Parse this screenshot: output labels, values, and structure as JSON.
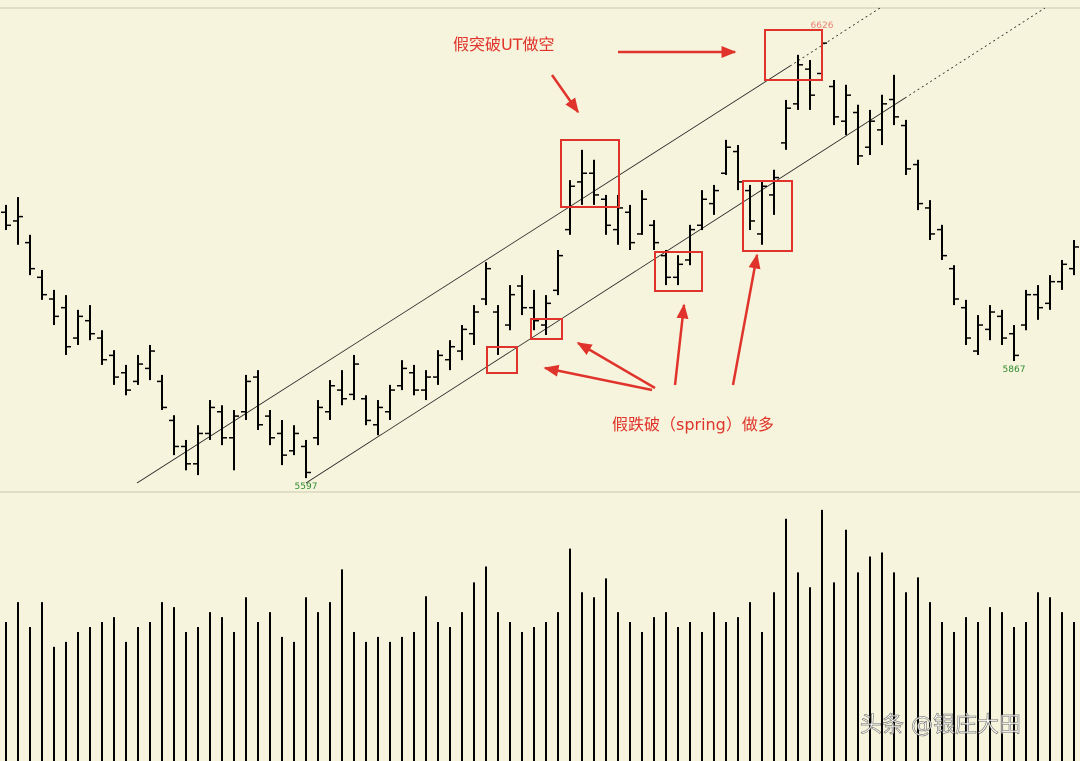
{
  "chart_data": {
    "type": "ohlc",
    "color": "#000000",
    "volume_color": "#000000",
    "label_color": "#2e8b2e",
    "annotation_color": "#e0332b",
    "categories": [
      null,
      null,
      null,
      null,
      null,
      null,
      null,
      null,
      null,
      null,
      null,
      null,
      null,
      null,
      null,
      null,
      null,
      null,
      null,
      null,
      null,
      null,
      null,
      null,
      null,
      null,
      null,
      null,
      null,
      null,
      null,
      null,
      null,
      null,
      null,
      null,
      null,
      null,
      null,
      null,
      null,
      null,
      null,
      null,
      null,
      null,
      null,
      null,
      null,
      null,
      null,
      null,
      null,
      null,
      null,
      null,
      null,
      null,
      null,
      null,
      null,
      null,
      null,
      null,
      null,
      null,
      null,
      null,
      null,
      null,
      null,
      null,
      null,
      null,
      null,
      null,
      null,
      null,
      null,
      null,
      null,
      null,
      null,
      null,
      null,
      null,
      null,
      null,
      null,
      null
    ],
    "open": [
      6210,
      6190,
      6140,
      6060,
      6010,
      5990,
      5920,
      5960,
      5920,
      5880,
      5840,
      5820,
      5850,
      5820,
      5730,
      5670,
      5630,
      5700,
      5750,
      5690,
      5750,
      5830,
      5740,
      5700,
      5660,
      5670,
      5690,
      5750,
      5800,
      5790,
      5780,
      5720,
      5750,
      5810,
      5840,
      5800,
      5830,
      5870,
      5890,
      5930,
      6010,
      5980,
      5950,
      6040,
      5990,
      5950,
      6030,
      6170,
      6280,
      6300,
      6240,
      6170,
      6210,
      6160,
      6180,
      6110,
      6060,
      6100,
      6180,
      6230,
      6300,
      6350,
      6260,
      6160,
      6250,
      6370,
      6460,
      6540,
      6530,
      6500,
      6420,
      6440,
      6360,
      6400,
      6470,
      6410,
      6320,
      6220,
      6170,
      6080,
      5990,
      5890,
      5940,
      5970,
      5930,
      5950,
      6020,
      6000,
      6050,
      6080
    ],
    "high": [
      6227,
      6245,
      6158,
      6077,
      6031,
      6019,
      5985,
      5996,
      5938,
      5892,
      5858,
      5881,
      5904,
      5835,
      5742,
      5685,
      5719,
      5777,
      5765,
      5754,
      5835,
      5846,
      5754,
      5731,
      5719,
      5685,
      5777,
      5823,
      5846,
      5881,
      5788,
      5777,
      5812,
      5869,
      5858,
      5846,
      5892,
      5915,
      5950,
      5996,
      6095,
      5996,
      6042,
      6065,
      6031,
      6019,
      6123,
      6284,
      6354,
      6331,
      6250,
      6250,
      6227,
      6261,
      6192,
      6123,
      6111,
      6181,
      6261,
      6273,
      6377,
      6365,
      6273,
      6284,
      6308,
      6469,
      6573,
      6561,
      6626,
      6515,
      6504,
      6458,
      6446,
      6481,
      6527,
      6423,
      6331,
      6238,
      6181,
      6088,
      6008,
      5973,
      5996,
      5985,
      5950,
      6031,
      6042,
      6065,
      6100,
      6146
    ],
    "low": [
      6169,
      6135,
      6065,
      6008,
      5950,
      5881,
      5904,
      5915,
      5858,
      5812,
      5788,
      5812,
      5823,
      5754,
      5650,
      5615,
      5604,
      5685,
      5673,
      5615,
      5731,
      5708,
      5673,
      5627,
      5650,
      5597,
      5673,
      5731,
      5765,
      5777,
      5719,
      5696,
      5731,
      5800,
      5788,
      5777,
      5812,
      5846,
      5869,
      5904,
      5996,
      5881,
      5938,
      5973,
      5938,
      5927,
      6019,
      6158,
      6227,
      6227,
      6158,
      6135,
      6123,
      6158,
      6123,
      6042,
      6042,
      6088,
      6169,
      6204,
      6296,
      6261,
      6169,
      6135,
      6204,
      6354,
      6446,
      6446,
      6515,
      6411,
      6388,
      6319,
      6342,
      6365,
      6411,
      6296,
      6215,
      6146,
      6100,
      5996,
      5904,
      5881,
      5915,
      5904,
      5867,
      5938,
      5962,
      5985,
      6031,
      6065
    ],
    "close": [
      6180,
      6200,
      6080,
      6020,
      5970,
      5900,
      5970,
      5930,
      5870,
      5830,
      5800,
      5860,
      5890,
      5760,
      5670,
      5630,
      5700,
      5760,
      5690,
      5740,
      5820,
      5720,
      5690,
      5650,
      5700,
      5610,
      5760,
      5810,
      5780,
      5860,
      5730,
      5760,
      5800,
      5850,
      5800,
      5830,
      5880,
      5900,
      5940,
      5980,
      6080,
      5900,
      6020,
      5990,
      5960,
      6000,
      6110,
      6270,
      6300,
      6250,
      6180,
      6220,
      6140,
      6240,
      6140,
      6060,
      6090,
      6170,
      6240,
      6260,
      6360,
      6280,
      6190,
      6270,
      6290,
      6450,
      6550,
      6480,
      6600,
      6430,
      6480,
      6340,
      6420,
      6460,
      6430,
      6310,
      6230,
      6160,
      6110,
      6010,
      5920,
      5950,
      5980,
      5920,
      5880,
      6020,
      5990,
      6050,
      6090,
      6130
    ],
    "volume": [
      140,
      160,
      135,
      160,
      115,
      120,
      130,
      135,
      140,
      145,
      120,
      135,
      140,
      160,
      155,
      130,
      135,
      150,
      145,
      130,
      165,
      140,
      150,
      125,
      120,
      165,
      150,
      160,
      193,
      130,
      120,
      125,
      120,
      125,
      130,
      166,
      140,
      135,
      150,
      180,
      196,
      150,
      140,
      130,
      135,
      140,
      150,
      214,
      170,
      165,
      184,
      150,
      140,
      130,
      145,
      150,
      135,
      140,
      130,
      150,
      140,
      145,
      160,
      130,
      170,
      244,
      190,
      175,
      253,
      180,
      233,
      190,
      206,
      210,
      190,
      170,
      185,
      160,
      140,
      130,
      145,
      140,
      155,
      150,
      135,
      140,
      170,
      165,
      150,
      140
    ],
    "ylim": [
      5565,
      6681
    ],
    "volume_ylim": [
      0,
      270
    ],
    "point_labels": [
      {
        "series": "low",
        "index": 25
      },
      {
        "series": "high",
        "index": 68
      },
      {
        "series": "low",
        "index": 84
      }
    ],
    "annotations": [
      "假突破UT做空",
      "假跌破（spring）做多"
    ],
    "watermark": "头条 @银庄大田"
  }
}
